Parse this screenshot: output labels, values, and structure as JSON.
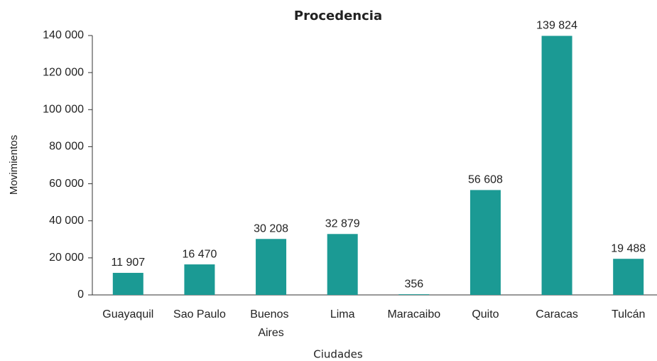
{
  "chart_data": {
    "type": "bar",
    "title": "Procedencia",
    "x_label": "Ciudades",
    "y_label": "Movimientos",
    "categories": [
      "Guayaquil",
      "Sao Paulo",
      "Buenos Aires",
      "Lima",
      "Maracaibo",
      "Quito",
      "Caracas",
      "Tulcán"
    ],
    "values": [
      11907,
      16470,
      30208,
      32879,
      356,
      56608,
      139824,
      19488
    ],
    "value_labels": [
      "11 907",
      "16 470",
      "30 208",
      "32 879",
      "356",
      "56 608",
      "139 824",
      "19 488"
    ],
    "color": "#1b9a94",
    "ylim": [
      0,
      140000
    ],
    "yticks": [
      0,
      {
        "value": 20000,
        "label": "20 000"
      },
      {
        "value": 40000,
        "label": "40 000"
      },
      {
        "value": 60000,
        "label": "60 000"
      },
      {
        "value": 80000,
        "label": "80 000"
      },
      {
        "value": 100000,
        "label": "100 000"
      },
      {
        "value": 120000,
        "label": "120 000"
      },
      {
        "value": 140000,
        "label": "140 000"
      }
    ],
    "grid": false
  }
}
